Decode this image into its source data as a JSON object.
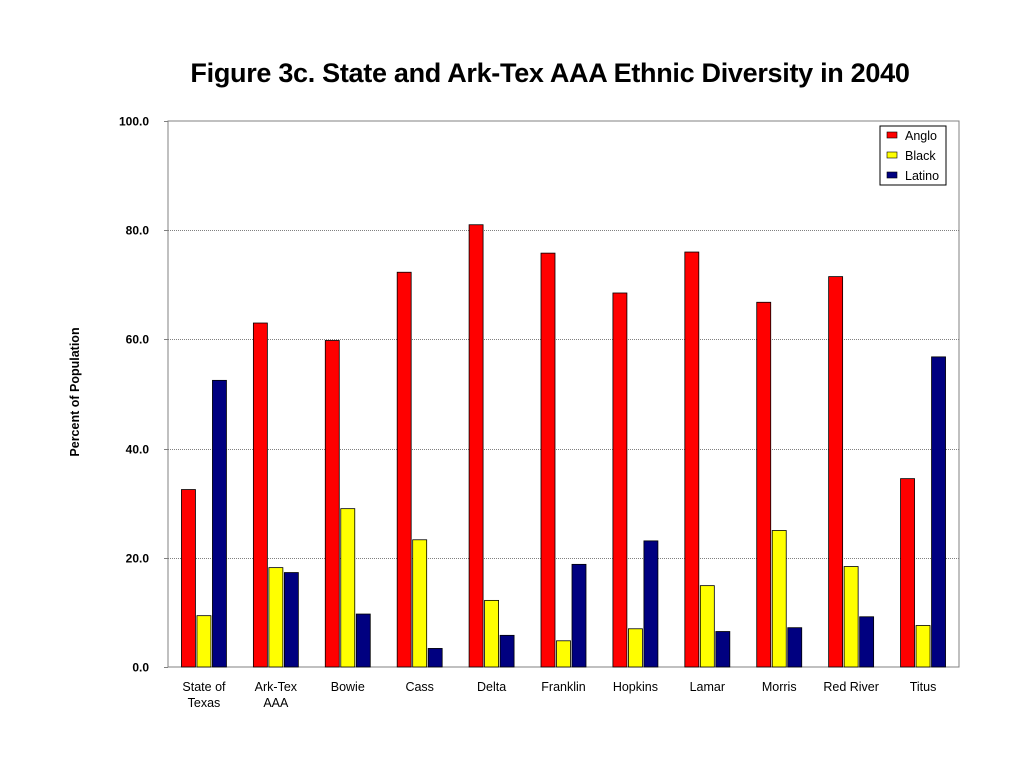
{
  "chart_data": {
    "type": "bar",
    "title": "Figure 3c. State and Ark-Tex AAA Ethnic Diversity in 2040",
    "ylabel": "Percent of Population",
    "xlabel": "",
    "ylim": [
      0,
      100
    ],
    "yticks": [
      "0.0",
      "20.0",
      "40.0",
      "60.0",
      "80.0",
      "100.0"
    ],
    "ytick_values": [
      0,
      20,
      40,
      60,
      80,
      100
    ],
    "grid": true,
    "legend_position": "top-right",
    "categories": [
      [
        "State of",
        "Texas"
      ],
      [
        "Ark-Tex",
        "AAA"
      ],
      [
        "Bowie"
      ],
      [
        "Cass"
      ],
      [
        "Delta"
      ],
      [
        "Franklin"
      ],
      [
        "Hopkins"
      ],
      [
        "Lamar"
      ],
      [
        "Morris"
      ],
      [
        "Red River"
      ],
      [
        "Titus"
      ]
    ],
    "series": [
      {
        "name": "Anglo",
        "color": "#ff0000",
        "values": [
          32.5,
          63.0,
          59.8,
          72.3,
          81.0,
          75.8,
          68.5,
          76.0,
          66.8,
          71.5,
          34.5
        ]
      },
      {
        "name": "Black",
        "color": "#ffff00",
        "values": [
          9.4,
          18.2,
          29.0,
          23.3,
          12.2,
          4.8,
          7.0,
          14.9,
          25.0,
          18.4,
          7.6
        ]
      },
      {
        "name": "Latino",
        "color": "#000080",
        "values": [
          52.5,
          17.3,
          9.7,
          3.4,
          5.8,
          18.8,
          23.1,
          6.5,
          7.2,
          9.2,
          56.8
        ]
      }
    ]
  }
}
